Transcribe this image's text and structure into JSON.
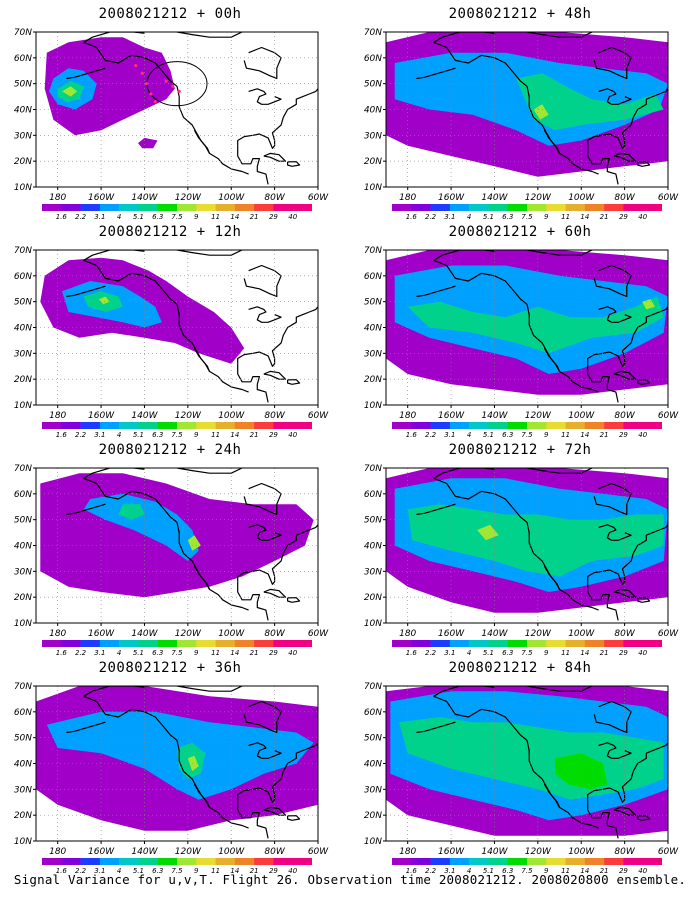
{
  "panels": [
    {
      "title": "2008021212 + 00h",
      "column": 0,
      "row": 0,
      "level": 0,
      "has_flight_track": true
    },
    {
      "title": "2008021212 + 12h",
      "column": 0,
      "row": 1,
      "level": 1,
      "has_flight_track": false
    },
    {
      "title": "2008021212 + 24h",
      "column": 0,
      "row": 2,
      "level": 2,
      "has_flight_track": false
    },
    {
      "title": "2008021212 + 36h",
      "column": 0,
      "row": 3,
      "level": 3,
      "has_flight_track": false
    },
    {
      "title": "2008021212 + 48h",
      "column": 1,
      "row": 0,
      "level": 4,
      "has_flight_track": false
    },
    {
      "title": "2008021212 + 60h",
      "column": 1,
      "row": 1,
      "level": 5,
      "has_flight_track": false
    },
    {
      "title": "2008021212 + 72h",
      "column": 1,
      "row": 2,
      "level": 6,
      "has_flight_track": false
    },
    {
      "title": "2008021212 + 84h",
      "column": 1,
      "row": 3,
      "level": 7,
      "has_flight_track": false
    }
  ],
  "axes": {
    "lat_labels": [
      "10N",
      "20N",
      "30N",
      "40N",
      "50N",
      "60N",
      "70N"
    ],
    "lon_labels": [
      "180",
      "160W",
      "140W",
      "120W",
      "100W",
      "80W",
      "60W"
    ]
  },
  "colorbar": {
    "labels": [
      "1.6",
      "2.2",
      "3.1",
      "4",
      "5.1",
      "6.3",
      "7.5",
      "9",
      "11",
      "14",
      "21",
      "29",
      "40"
    ],
    "colors": [
      "#a000c8",
      "#8200dc",
      "#1e3cff",
      "#00a0ff",
      "#00c8c8",
      "#00d28c",
      "#00dc00",
      "#a0e632",
      "#e6dc32",
      "#e6af2d",
      "#f08228",
      "#fa3c3c",
      "#f00082"
    ]
  },
  "caption": "Signal Variance for u,v,T. Flight 26. Observation time 2008021212. 2008020800 ensemble."
}
